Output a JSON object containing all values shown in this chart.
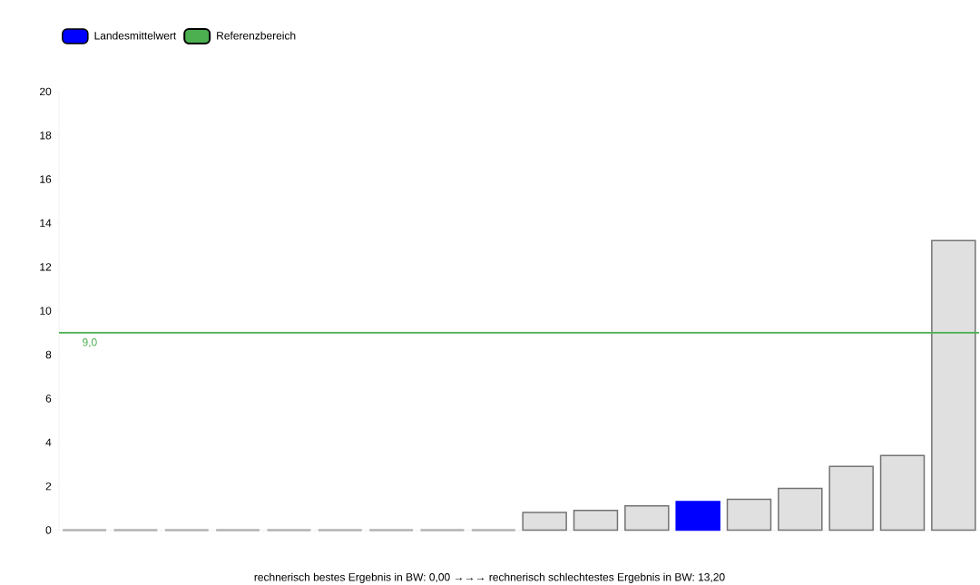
{
  "chart_data": {
    "type": "bar",
    "categories": [
      null,
      null,
      null,
      null,
      null,
      null,
      null,
      null,
      null,
      null,
      null,
      null,
      null,
      null,
      null,
      null,
      null,
      null
    ],
    "series": [
      {
        "color": "#e0e0e0",
        "values": [
          0,
          0,
          0,
          0,
          0,
          0,
          0,
          0,
          0,
          0.8,
          0.9,
          1.1,
          null,
          1.4,
          1.9,
          2.9,
          3.4,
          13.2
        ]
      },
      {
        "name": "Landesmittelwert",
        "color": "#0000ff",
        "values": [
          null,
          null,
          null,
          null,
          null,
          null,
          null,
          null,
          null,
          null,
          null,
          null,
          1.3,
          null,
          null,
          null,
          null,
          null
        ]
      }
    ],
    "ylim": [
      0,
      20
    ],
    "yticks": [
      0,
      2,
      4,
      6,
      8,
      10,
      12,
      14,
      16,
      18,
      20
    ],
    "ref_lines": [
      {
        "axis": "y",
        "value": 9,
        "label": "Referenzbereich",
        "color": "#4caf50"
      }
    ],
    "annotations": [
      {
        "text": "9,0",
        "y": 9
      },
      "rechnerisch bestes Ergebnis in BW: 0,00 →→→ rechnerisch schlechtestes Ergebnis in BW: 13,20"
    ],
    "legend": "top left",
    "grid": false
  }
}
